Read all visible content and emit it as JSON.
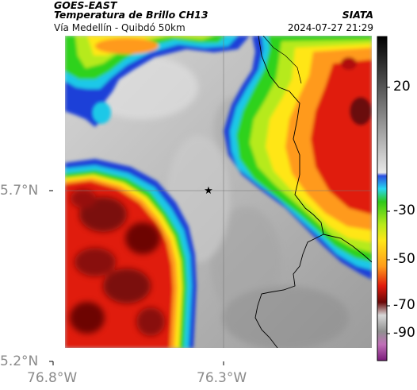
{
  "header": {
    "satellite": "GOES-EAST",
    "product": "Temperatura de Brillo CH13",
    "route": "Vía Medellín - Quibdó 50km",
    "source": "SIATA",
    "datetime": "2024-07-27 21:29"
  },
  "map": {
    "lat_labels": [
      "5.7°N",
      "5.2°N"
    ],
    "lon_labels": [
      "76.8°W",
      "76.3°W"
    ],
    "marker": "star-icon",
    "colors": {
      "gray_background": "#bdbdbd",
      "cold_red": "#d01c0c",
      "dark_red": "#5a0b0b",
      "orange": "#ff8a14",
      "yellow": "#ffe619",
      "green": "#2fd21c",
      "blue": "#0a40d8",
      "cyan": "#20d0f0",
      "border": "#000000"
    }
  },
  "colorbar": {
    "ticks": [
      "20",
      "-30",
      "-50",
      "-70",
      "-90"
    ],
    "colors": [
      "#000000",
      "#7a7a7a",
      "#e8e8e8",
      "#1a4be0",
      "#28d7f0",
      "#2ec81a",
      "#f2f21a",
      "#ff9a1a",
      "#e01a0c",
      "#6a0808",
      "#b0b0b0",
      "#d060c0",
      "#7a1a7a"
    ]
  }
}
